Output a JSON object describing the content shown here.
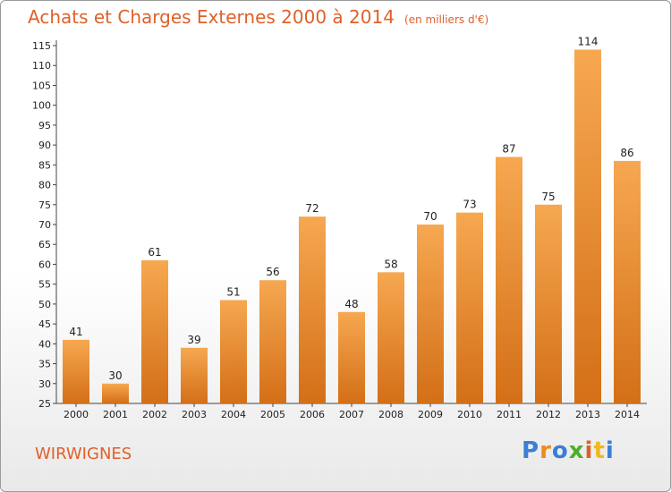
{
  "title": {
    "main": "Achats et Charges Externes 2000 à 2014",
    "unit": "(en milliers d'€)"
  },
  "location": "WIRWIGNES",
  "logo": {
    "letters": [
      "P",
      "r",
      "o",
      "x",
      "i",
      "t",
      "i"
    ],
    "colors": [
      "#3a7fd5",
      "#f08a1c",
      "#3a7fd5",
      "#4caf2a",
      "#e0602a",
      "#f0b81c",
      "#3a7fd5"
    ]
  },
  "colors": {
    "bar_top": "#f6a851",
    "bar_bottom": "#d36f17",
    "accent": "#e0602a"
  },
  "chart_data": {
    "type": "bar",
    "categories": [
      "2000",
      "2001",
      "2002",
      "2003",
      "2004",
      "2005",
      "2006",
      "2007",
      "2008",
      "2009",
      "2010",
      "2011",
      "2012",
      "2013",
      "2014"
    ],
    "values": [
      41,
      30,
      61,
      39,
      51,
      56,
      72,
      48,
      58,
      70,
      73,
      87,
      75,
      114,
      86
    ],
    "data_labels": [
      "41",
      "30",
      "61",
      "39",
      "51",
      "56",
      "72",
      "48",
      "58",
      "70",
      "73",
      "87",
      "75",
      "114",
      "86"
    ],
    "y_ticks": [
      25,
      30,
      35,
      40,
      45,
      50,
      55,
      60,
      65,
      70,
      75,
      80,
      85,
      90,
      95,
      100,
      105,
      110,
      115
    ],
    "ylim": [
      25,
      115
    ],
    "title": "Achats et Charges Externes 2000 à 2014",
    "xlabel": "",
    "ylabel": "",
    "grid": false,
    "legend": "none"
  }
}
